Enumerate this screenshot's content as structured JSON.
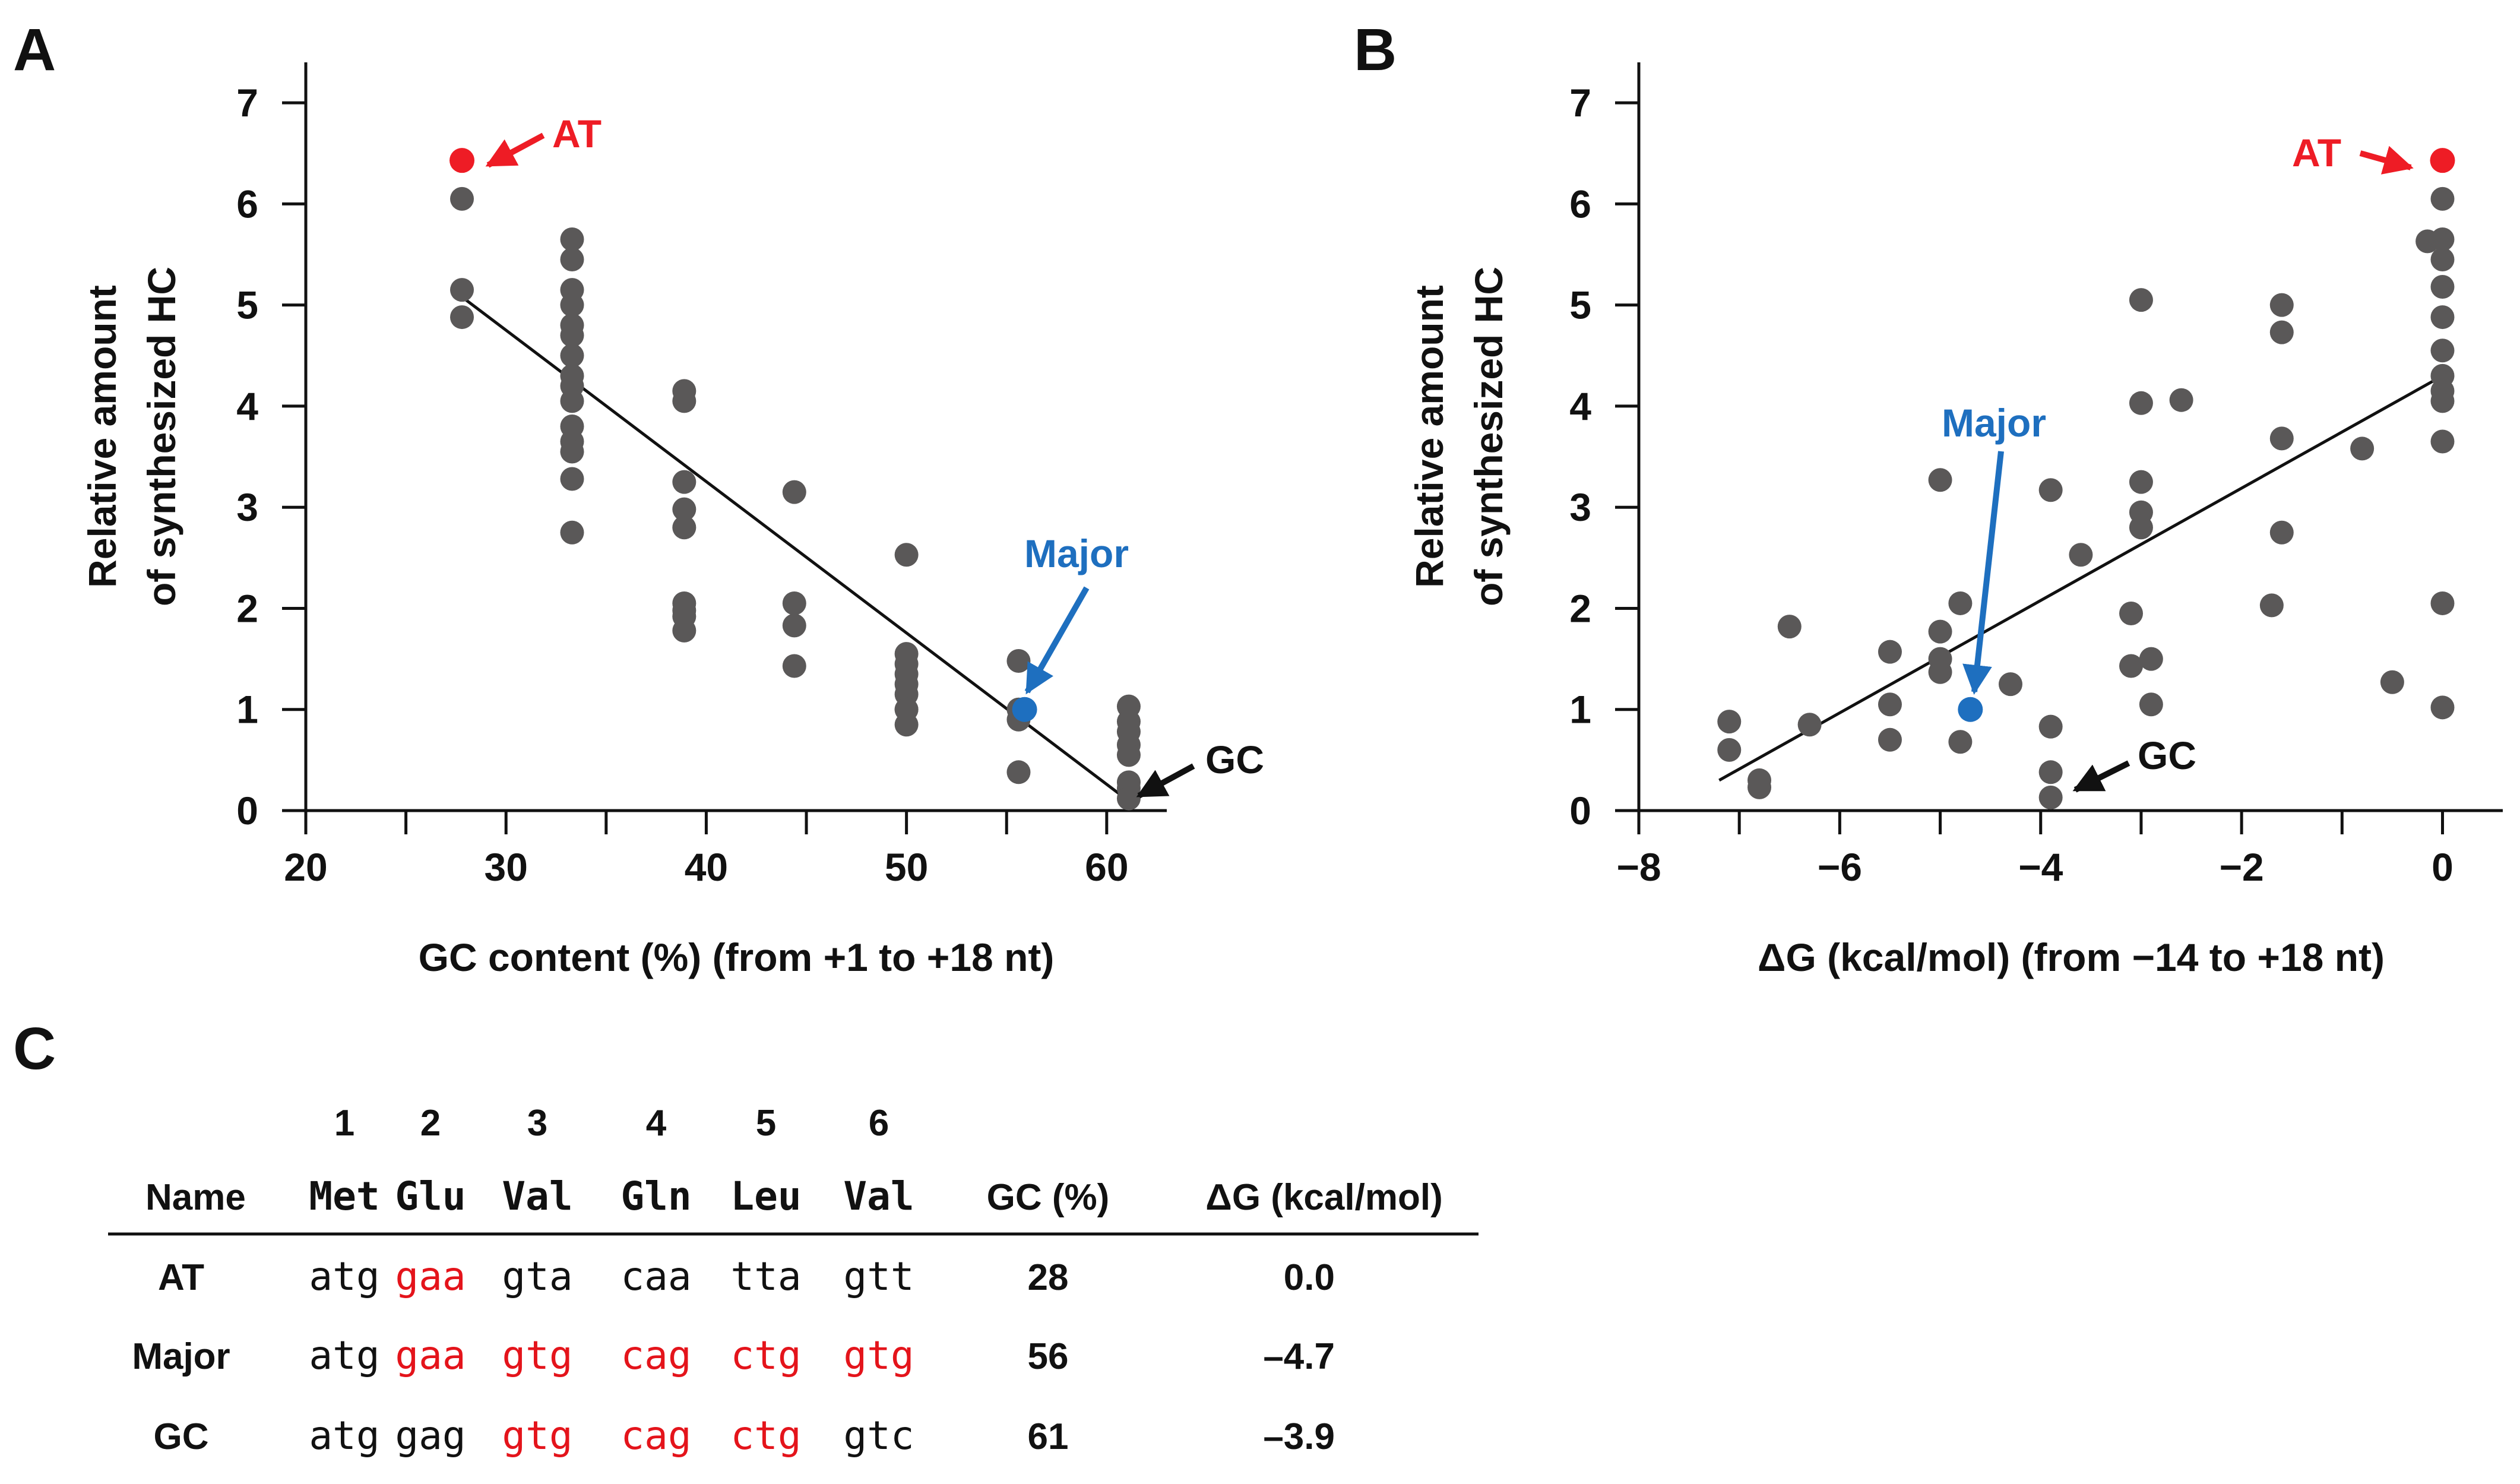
{
  "panels": {
    "a_letter": "A",
    "b_letter": "B",
    "c_letter": "C"
  },
  "colors": {
    "points": "#5a5858",
    "highlight_at": "#ee1c25",
    "highlight_major": "#1e6fbf",
    "annot_gc": "#111111",
    "codon_red": "#e4141b"
  },
  "chart_data": [
    {
      "type": "scatter",
      "panel": "A",
      "xlabel": "GC content (%) (from +1 to +18 nt)",
      "ylabel_line1": "Relative amount",
      "ylabel_line2": "of synthesized HC",
      "xlim": [
        20,
        63
      ],
      "ylim": [
        0,
        7.4
      ],
      "xticks": [
        "20",
        "30",
        "40",
        "50",
        "60"
      ],
      "yticks": [
        "0",
        "1",
        "2",
        "3",
        "4",
        "5",
        "6",
        "7"
      ],
      "x": [
        27.8,
        27.8,
        27.8,
        33.3,
        33.3,
        33.3,
        33.3,
        33.3,
        33.3,
        33.3,
        33.3,
        33.3,
        33.3,
        33.3,
        33.3,
        33.3,
        33.3,
        33.3,
        38.9,
        38.9,
        38.9,
        38.9,
        38.9,
        38.9,
        38.9,
        38.9,
        38.9,
        44.4,
        44.4,
        44.4,
        44.4,
        50,
        50,
        50,
        50,
        50,
        50,
        50,
        50,
        50,
        55.6,
        55.6,
        55.6,
        55.6,
        61.1,
        61.1,
        61.1,
        61.1,
        61.1,
        61.1,
        61.1,
        61.1
      ],
      "y": [
        6.05,
        5.15,
        4.88,
        5.65,
        5.45,
        5.15,
        5.0,
        4.8,
        4.7,
        4.5,
        4.3,
        4.2,
        4.05,
        3.8,
        3.65,
        3.55,
        3.28,
        2.75,
        4.15,
        4.05,
        3.25,
        2.98,
        2.8,
        2.05,
        1.98,
        1.92,
        1.78,
        3.15,
        2.05,
        1.83,
        1.43,
        2.53,
        1.55,
        1.45,
        1.35,
        1.25,
        1.15,
        1.0,
        1.0,
        0.85,
        1.48,
        1.0,
        0.9,
        0.38,
        1.03,
        0.88,
        0.78,
        0.65,
        0.55,
        0.28,
        0.22,
        0.12
      ],
      "highlights": [
        {
          "name": "AT",
          "x": 27.8,
          "y": 6.43
        },
        {
          "name": "Major",
          "x": 55.9,
          "y": 1.0
        }
      ],
      "fit_line": {
        "x": [
          27.8,
          61.2
        ],
        "y": [
          5.08,
          0.08
        ]
      },
      "annotations": {
        "at": "AT",
        "major": "Major",
        "gc": "GC"
      }
    },
    {
      "type": "scatter",
      "panel": "B",
      "xlabel": "ΔG (kcal/mol) (from −14 to +18 nt)",
      "ylabel_line1": "Relative amount",
      "ylabel_line2": "of synthesized HC",
      "xlim": [
        -8,
        0.6
      ],
      "ylim": [
        0,
        7.4
      ],
      "xticks": [
        "−8",
        "−6",
        "−4",
        "−2",
        "0"
      ],
      "yticks": [
        "0",
        "1",
        "2",
        "3",
        "4",
        "5",
        "6",
        "7"
      ],
      "x": [
        -7.1,
        -7.1,
        -6.8,
        -6.8,
        -6.5,
        -6.3,
        -5.5,
        -5.5,
        -5.5,
        -5.0,
        -5.0,
        -5.0,
        -5.0,
        -4.8,
        -4.8,
        -4.3,
        -3.9,
        -3.9,
        -3.9,
        -3.9,
        -3.6,
        -3.0,
        -3.0,
        -3.0,
        -3.0,
        -3.0,
        -3.1,
        -3.1,
        -2.9,
        -2.9,
        -2.6,
        -1.6,
        -1.6,
        -1.6,
        -1.6,
        -1.7,
        -0.8,
        -0.5,
        -0.15,
        0,
        0,
        0,
        0,
        0,
        0,
        0,
        0,
        0,
        0,
        0,
        0
      ],
      "y": [
        0.88,
        0.6,
        0.3,
        0.23,
        1.82,
        0.85,
        1.57,
        1.05,
        0.7,
        3.27,
        1.77,
        1.5,
        1.37,
        2.05,
        0.68,
        1.25,
        3.17,
        0.83,
        0.38,
        0.13,
        2.53,
        5.05,
        4.03,
        3.25,
        2.95,
        2.8,
        1.95,
        1.43,
        1.5,
        1.05,
        4.06,
        5.0,
        4.73,
        3.68,
        2.75,
        2.03,
        3.58,
        1.27,
        5.63,
        6.05,
        5.65,
        5.45,
        5.18,
        4.88,
        4.55,
        4.3,
        4.15,
        4.05,
        3.65,
        2.05,
        1.02
      ],
      "highlights": [
        {
          "name": "AT",
          "x": 0,
          "y": 6.43
        },
        {
          "name": "Major",
          "x": -4.7,
          "y": 1.0
        }
      ],
      "fit_line": {
        "x": [
          -7.2,
          0.0
        ],
        "y": [
          0.3,
          4.3
        ]
      },
      "annotations": {
        "at": "AT",
        "major": "Major",
        "gc": "GC"
      }
    }
  ],
  "table": {
    "positions": [
      "1",
      "2",
      "3",
      "4",
      "5",
      "6"
    ],
    "header": {
      "name": "Name",
      "codons": [
        "Met",
        "Glu",
        "Val",
        "Gln",
        "Leu",
        "Val"
      ],
      "gc": "GC (%)",
      "dg": "ΔG (kcal/mol)"
    },
    "rows": [
      {
        "name": "AT",
        "codons": [
          "atg",
          "gaa",
          "gta",
          "caa",
          "tta",
          "gtt"
        ],
        "red": [
          false,
          true,
          false,
          false,
          false,
          false
        ],
        "gc": "28",
        "dg": "0.0"
      },
      {
        "name": "Major",
        "codons": [
          "atg",
          "gaa",
          "gtg",
          "cag",
          "ctg",
          "gtg"
        ],
        "red": [
          false,
          true,
          true,
          true,
          true,
          true
        ],
        "gc": "56",
        "dg": "–4.7"
      },
      {
        "name": "GC",
        "codons": [
          "atg",
          "gag",
          "gtg",
          "cag",
          "ctg",
          "gtc"
        ],
        "red": [
          false,
          false,
          true,
          true,
          true,
          false
        ],
        "gc": "61",
        "dg": "–3.9"
      }
    ]
  }
}
